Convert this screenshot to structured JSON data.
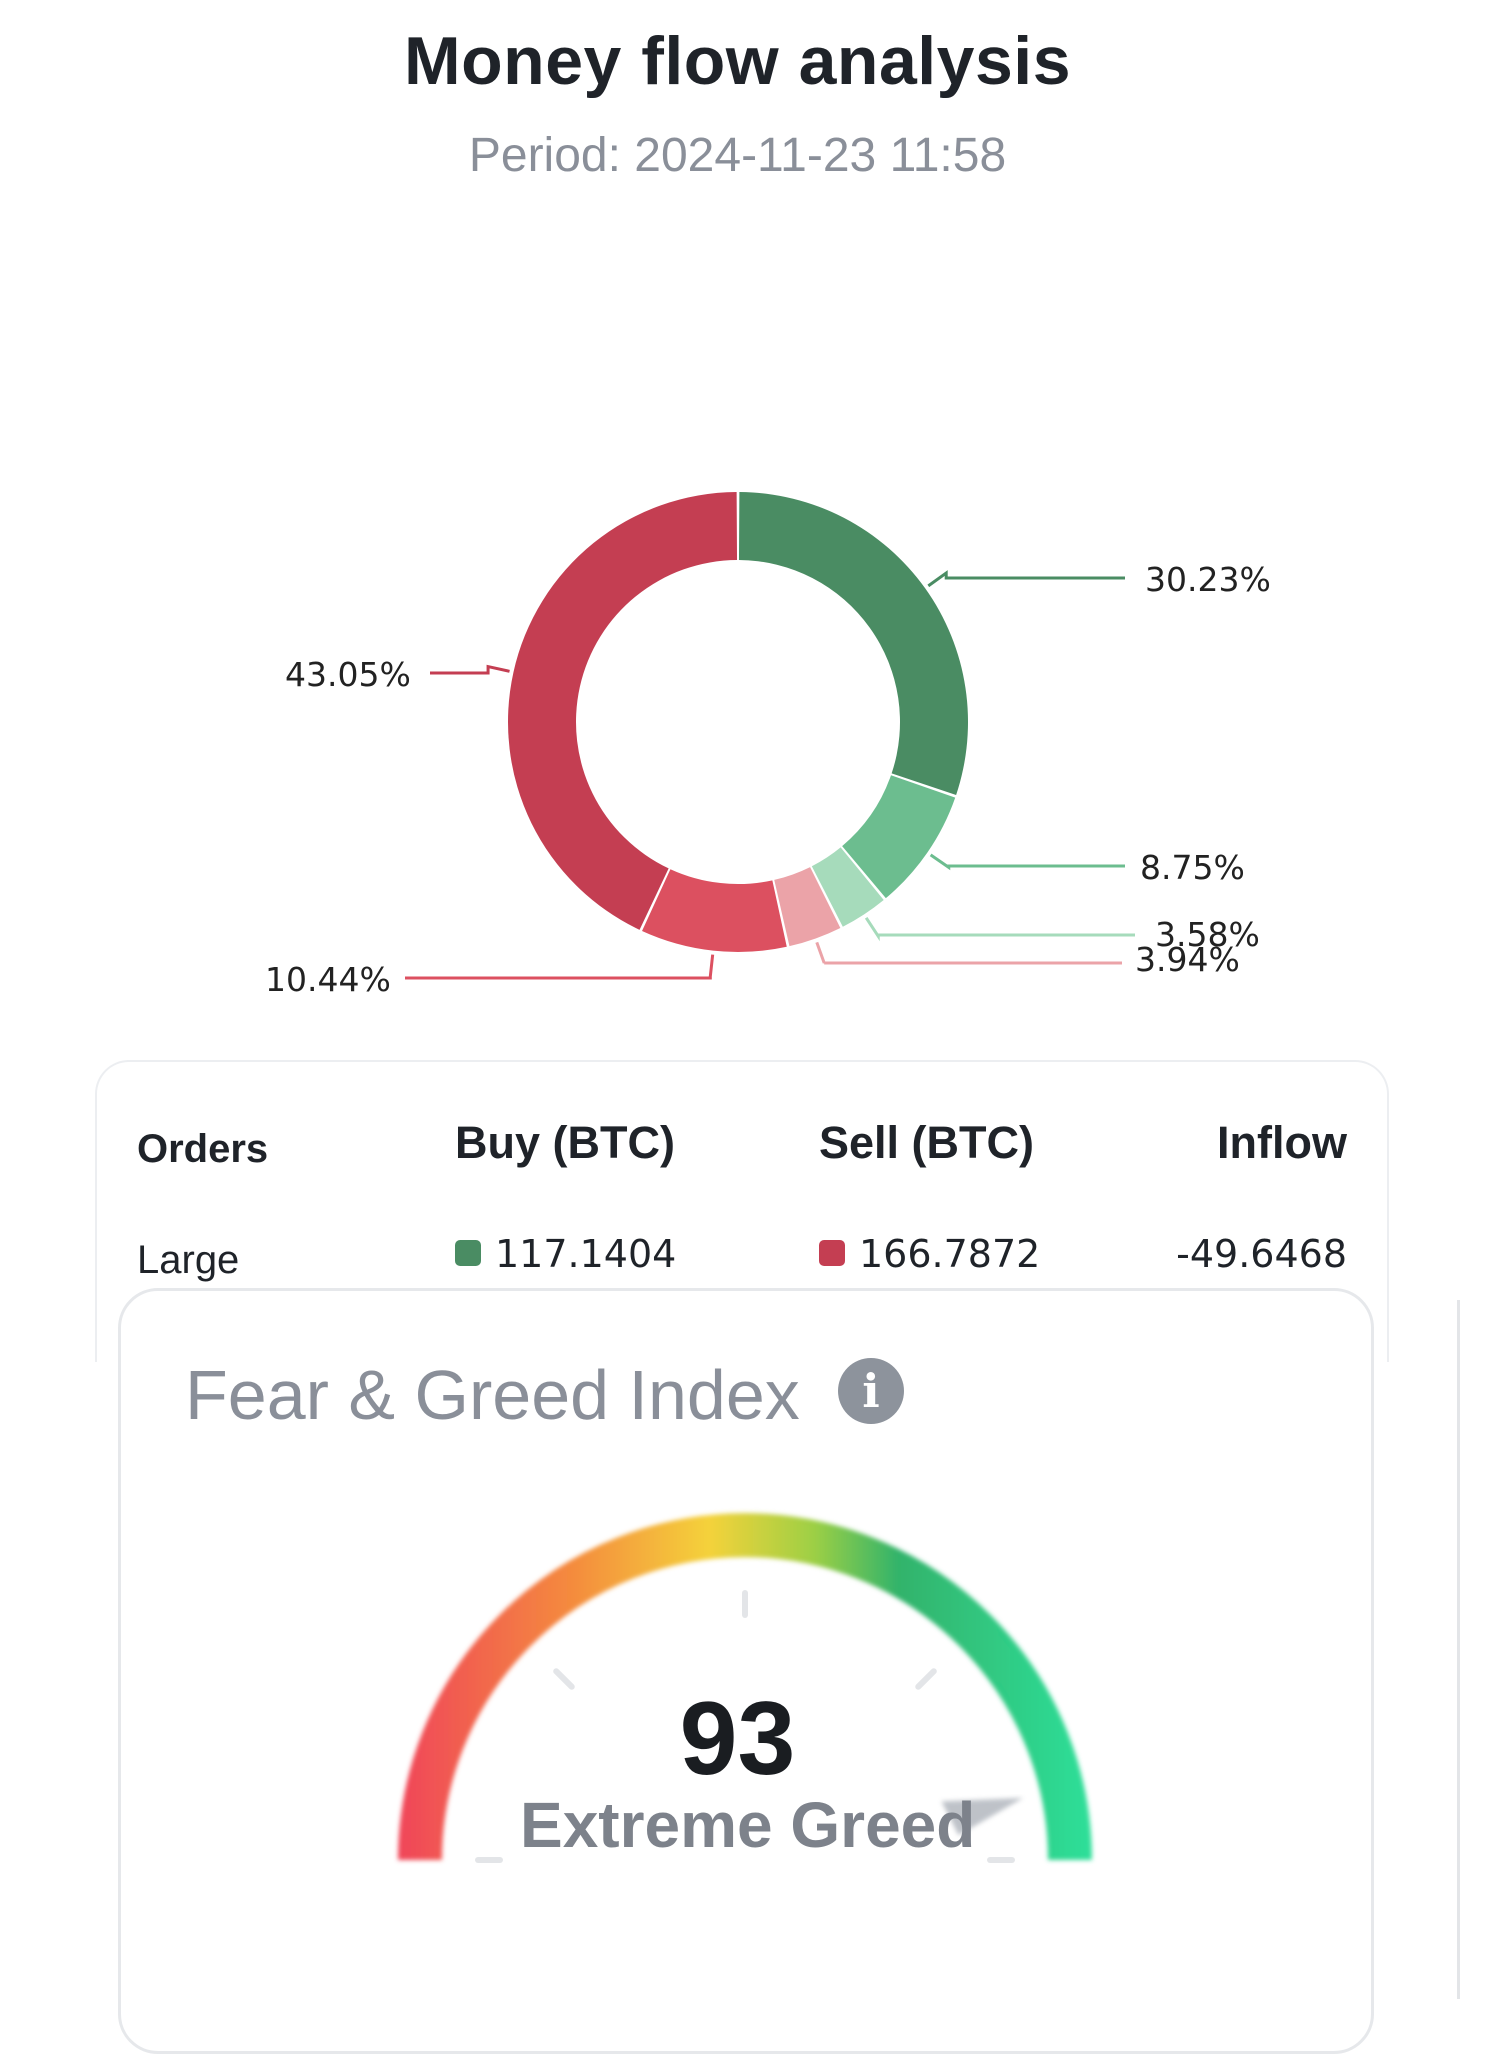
{
  "money_flow": {
    "title": "Money flow analysis",
    "period": "Period: 2024-11-23 11:58"
  },
  "chart_data": {
    "type": "pie",
    "style": "donut",
    "slices": [
      {
        "label": "30.23%",
        "value": 30.23,
        "color": "#4a8c63"
      },
      {
        "label": "8.75%",
        "value": 8.75,
        "color": "#6cbd8f"
      },
      {
        "label": "3.58%",
        "value": 3.58,
        "color": "#a6dbbb"
      },
      {
        "label": "3.94%",
        "value": 3.94,
        "color": "#eba3a8"
      },
      {
        "label": "10.44%",
        "value": 10.44,
        "color": "#dc5060"
      },
      {
        "label": "43.05%",
        "value": 43.05,
        "color": "#c43e52"
      }
    ]
  },
  "orders": {
    "headers": [
      "Orders",
      "Buy (BTC)",
      "Sell (BTC)",
      "Inflow"
    ],
    "rows": [
      {
        "type": "Large",
        "buy": "117.1404",
        "sell": "166.7872",
        "inflow": "-49.6468"
      }
    ],
    "buy_color": "#4a8c63",
    "sell_color": "#c43e52"
  },
  "fear_greed": {
    "title": "Fear & Greed Index",
    "info_icon": "info-icon",
    "value": 93,
    "value_text": "93",
    "status": "Extreme Greed",
    "scale_max": 100,
    "colors": {
      "fear": "#f0445a",
      "neutral": "#f4d23a",
      "greed": "#2ee09a"
    }
  }
}
